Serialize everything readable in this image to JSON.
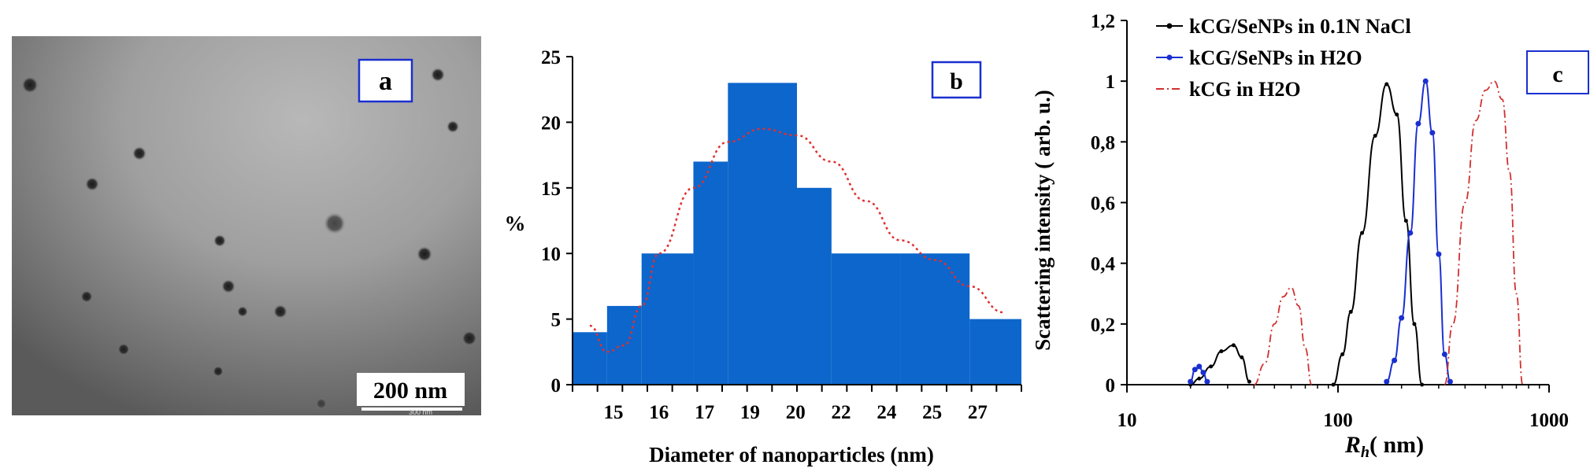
{
  "panel_a": {
    "label": "a",
    "scalebar_text": "200 nm",
    "scalebar_small": "300 nm"
  },
  "chart_data": [
    {
      "type": "bar",
      "panel_label": "b",
      "xlabel": "Diameter of nanoparticles (nm)",
      "ylabel": "%",
      "ylim": [
        0,
        25
      ],
      "yticks": [
        "0",
        "5",
        "10",
        "15",
        "20",
        "25"
      ],
      "xtick_labels": [
        "15",
        "16",
        "17",
        "19",
        "20",
        "22",
        "24",
        "25",
        "27"
      ],
      "bins": [
        {
          "from": 14.5,
          "to": 15.5,
          "value": 4
        },
        {
          "from": 15.5,
          "to": 16.5,
          "value": 6
        },
        {
          "from": 16.5,
          "to": 18,
          "value": 10
        },
        {
          "from": 18,
          "to": 19,
          "value": 17
        },
        {
          "from": 19,
          "to": 21,
          "value": 23
        },
        {
          "from": 21,
          "to": 22,
          "value": 15
        },
        {
          "from": 22,
          "to": 24,
          "value": 10
        },
        {
          "from": 24,
          "to": 26,
          "value": 10
        },
        {
          "from": 26,
          "to": 27.5,
          "value": 5
        }
      ],
      "fit_curve": {
        "style": "dotted",
        "color": "#e03030",
        "x": [
          15,
          15.5,
          16,
          16.5,
          17,
          18,
          19,
          20,
          21,
          22,
          23,
          24,
          25,
          26,
          27
        ],
        "y": [
          4.5,
          2.5,
          3,
          6,
          10,
          15,
          18.5,
          19.5,
          19,
          17,
          14,
          11,
          9.5,
          7.5,
          5.5
        ]
      },
      "bar_color": "#0c66cc"
    },
    {
      "type": "line",
      "panel_label": "c",
      "xlabel_symbol": "R",
      "xlabel_sub": "h",
      "xlabel_rest": "( nm)",
      "ylabel": "Scattering intensity ( arb. u.)",
      "xscale": "log",
      "xlim": [
        10,
        1000
      ],
      "ylim": [
        0,
        1.2
      ],
      "xticks": [
        "10",
        "100",
        "1000"
      ],
      "yticks": [
        "0",
        "0,2",
        "0,4",
        "0,6",
        "0,8",
        "1",
        "1,2"
      ],
      "legend_position": "top-left",
      "series": [
        {
          "name": "kCG/SeNPs in 0.1N NaCl",
          "color": "#000000",
          "style": "solid-markers",
          "x": [
            20,
            22,
            25,
            28,
            32,
            35,
            38,
            95,
            105,
            115,
            130,
            150,
            170,
            190,
            210,
            230,
            250
          ],
          "y": [
            0,
            0.02,
            0.06,
            0.11,
            0.13,
            0.09,
            0.01,
            0,
            0.1,
            0.24,
            0.5,
            0.82,
            0.99,
            0.89,
            0.54,
            0.2,
            0
          ]
        },
        {
          "name": "kCG/SeNPs in H2O",
          "color": "#1a2fd0",
          "style": "solid-markers",
          "x": [
            20,
            21,
            22,
            23,
            24,
            170,
            185,
            200,
            220,
            240,
            260,
            280,
            300,
            320,
            340
          ],
          "y": [
            0.01,
            0.05,
            0.06,
            0.04,
            0.01,
            0.01,
            0.08,
            0.22,
            0.5,
            0.86,
            1.0,
            0.83,
            0.43,
            0.1,
            0.01
          ]
        },
        {
          "name": "kCG in H2O",
          "color": "#d03030",
          "style": "dash-dot",
          "x": [
            40,
            45,
            50,
            55,
            60,
            65,
            70,
            75,
            320,
            350,
            400,
            450,
            500,
            550,
            600,
            650,
            700,
            750
          ],
          "y": [
            0,
            0.07,
            0.2,
            0.29,
            0.32,
            0.26,
            0.12,
            0,
            0,
            0.2,
            0.6,
            0.87,
            0.97,
            1.0,
            0.94,
            0.7,
            0.3,
            0
          ]
        }
      ]
    }
  ]
}
